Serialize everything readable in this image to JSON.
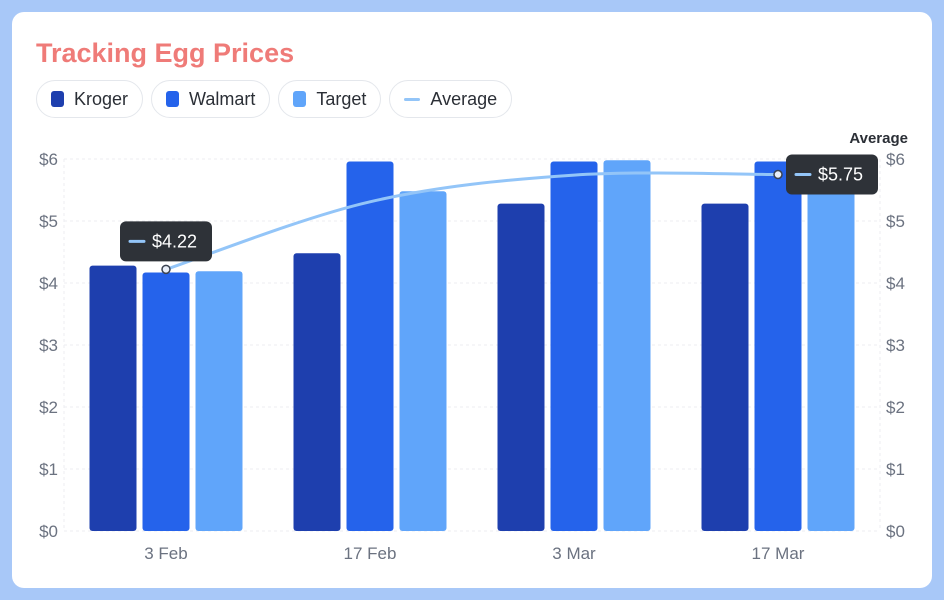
{
  "chart_data": {
    "type": "bar",
    "title": "Tracking Egg Prices",
    "categories": [
      "3 Feb",
      "17 Feb",
      "3 Mar",
      "17 Mar"
    ],
    "series": [
      {
        "name": "Kroger",
        "type": "bar",
        "color": "#1e3fae",
        "values": [
          4.28,
          4.48,
          5.28,
          5.28
        ]
      },
      {
        "name": "Walmart",
        "type": "bar",
        "color": "#2563eb",
        "values": [
          4.17,
          5.96,
          5.96,
          5.96
        ]
      },
      {
        "name": "Target",
        "type": "bar",
        "color": "#60a5fa",
        "values": [
          4.19,
          5.48,
          5.98,
          5.73
        ]
      },
      {
        "name": "Average",
        "type": "line",
        "color": "#93c5f8",
        "values": [
          4.22,
          5.31,
          5.74,
          5.75
        ]
      }
    ],
    "y_ticks": [
      "$0",
      "$1",
      "$2",
      "$3",
      "$4",
      "$5",
      "$6"
    ],
    "ylim": [
      0,
      6
    ],
    "right_axis_title": "Average",
    "tooltips": [
      {
        "category_index": 0,
        "label": "$4.22"
      },
      {
        "category_index": 3,
        "label": "$5.75"
      }
    ],
    "grid": true,
    "legend_position": "top-left"
  }
}
